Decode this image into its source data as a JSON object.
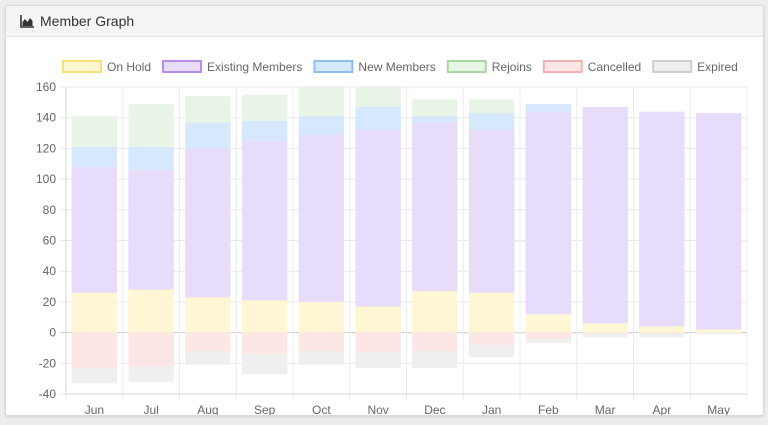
{
  "panel": {
    "title": "Member Graph",
    "title_icon": "area-chart-icon"
  },
  "chart_data": {
    "type": "bar",
    "stacked": true,
    "title": "",
    "xlabel": "",
    "ylabel": "",
    "ylim": [
      -40,
      160
    ],
    "yticks": [
      -40,
      -20,
      0,
      20,
      40,
      60,
      80,
      100,
      120,
      140,
      160
    ],
    "grid": true,
    "legend_position": "top",
    "categories": [
      "Jun",
      "Jul",
      "Aug",
      "Sep",
      "Oct",
      "Nov",
      "Dec",
      "Jan",
      "Feb",
      "Mar",
      "Apr",
      "May"
    ],
    "series": [
      {
        "name": "On Hold",
        "fill": "#fff6d4",
        "stroke": "#f5e27a",
        "values": [
          26,
          28,
          23,
          21,
          20,
          17,
          27,
          26,
          12,
          6,
          4,
          2
        ]
      },
      {
        "name": "Existing Members",
        "fill": "#e7dcf9",
        "stroke": "#b48ee8",
        "values": [
          82,
          78,
          97,
          104,
          109,
          115,
          110,
          106,
          132,
          141,
          140,
          141
        ]
      },
      {
        "name": "New Members",
        "fill": "#d6e8fb",
        "stroke": "#8fbff0",
        "values": [
          13,
          15,
          17,
          13,
          12,
          15,
          4,
          11,
          5,
          0,
          0,
          0
        ]
      },
      {
        "name": "Rejoins",
        "fill": "#e8f4e6",
        "stroke": "#a9d7a2",
        "values": [
          20,
          28,
          17,
          17,
          19,
          13,
          11,
          9,
          0,
          0,
          0,
          0
        ]
      },
      {
        "name": "Cancelled",
        "fill": "#fde6e6",
        "stroke": "#f4b2b2",
        "values": [
          -23,
          -22,
          -12,
          -14,
          -12,
          -13,
          -12,
          -8,
          -4,
          -1,
          -1,
          0
        ]
      },
      {
        "name": "Expired",
        "fill": "#efefef",
        "stroke": "#cfcfcf",
        "values": [
          -10,
          -10,
          -9,
          -13,
          -9,
          -10,
          -11,
          -8,
          -3,
          -2,
          -2,
          -1
        ]
      }
    ]
  }
}
